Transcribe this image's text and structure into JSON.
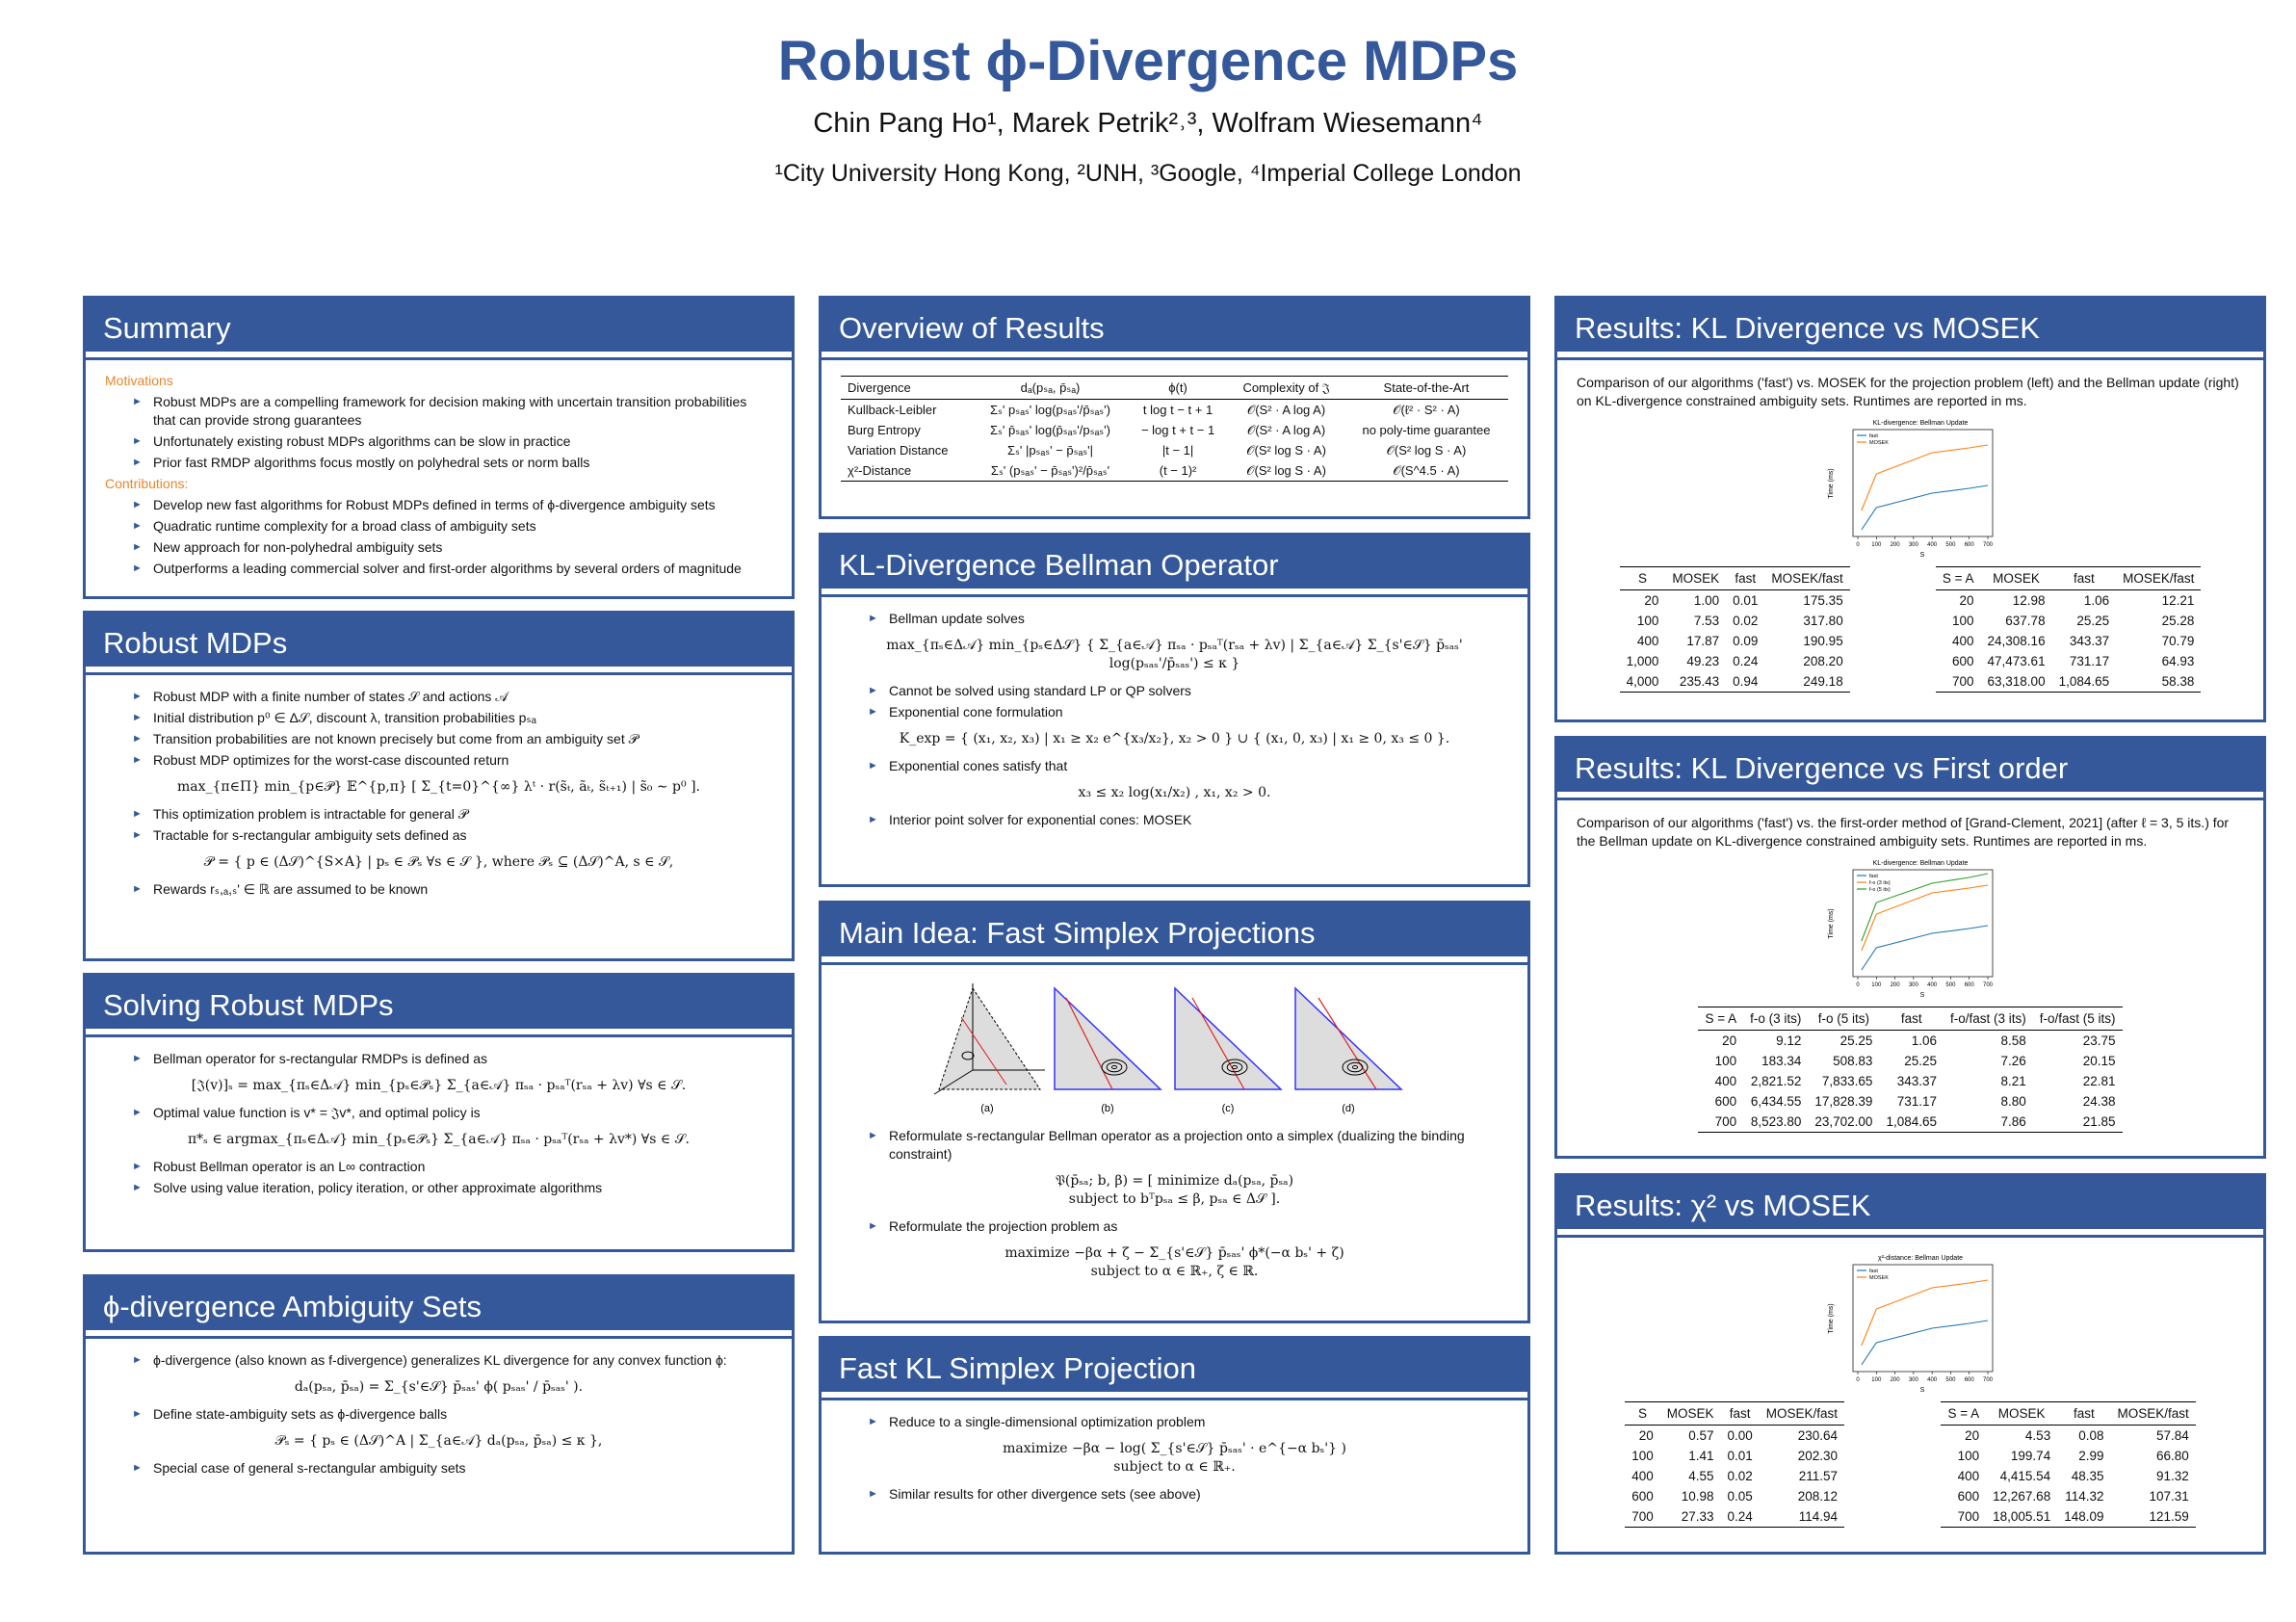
{
  "header": {
    "title": "Robust ϕ-Divergence MDPs",
    "authors": "Chin Pang Ho¹, Marek Petrik²˒³, Wolfram Wiesemann⁴",
    "affiliations": "¹City University Hong Kong, ²UNH, ³Google, ⁴Imperial College London"
  },
  "sections": [
    {
      "title": "Summary",
      "blocks": [
        {
          "label": "Motivations"
        },
        {
          "bullet": "Robust MDPs are a compelling framework for decision making with uncertain transition probabilities that can provide strong guarantees"
        },
        {
          "bullet": "Unfortunately existing robust MDPs algorithms can be slow in practice"
        },
        {
          "bullet": "Prior fast RMDP algorithms focus mostly on polyhedral sets or norm balls"
        },
        {
          "label": "Contributions:"
        },
        {
          "bullet": "Develop new fast algorithms for Robust MDPs defined in terms of ϕ-divergence ambiguity sets"
        },
        {
          "bullet": "Quadratic runtime complexity for a broad class of ambiguity sets"
        },
        {
          "bullet": "New approach for non-polyhedral ambiguity sets"
        },
        {
          "bullet": "Outperforms a leading commercial solver and first-order algorithms by several orders of magnitude"
        }
      ]
    },
    {
      "title": "Robust MDPs",
      "blocks": [
        {
          "bullet": "Robust MDP with a finite number of states 𝒮 and actions 𝒜"
        },
        {
          "bullet": "Initial distribution p⁰ ∈ Δ𝒮, discount λ, transition probabilities pₛₐ"
        },
        {
          "bullet": "Transition probabilities are not known precisely but come from an ambiguity set 𝒫"
        },
        {
          "bullet": "Robust MDP optimizes for the worst-case discounted return"
        },
        {
          "eq": "max_{π∈Π} min_{p∈𝒫} 𝔼^{p,π} [ Σ_{t=0}^{∞} λᵗ · r(s̃ₜ, ãₜ, s̃ₜ₊₁) | s̃₀ ∼ p⁰ ]."
        },
        {
          "bullet": "This optimization problem is intractable for general 𝒫"
        },
        {
          "bullet": "Tractable for s-rectangular ambiguity sets defined as"
        },
        {
          "eq": "𝒫 = { p ∈ (Δ𝒮)^{S×A} | pₛ ∈ 𝒫ₛ ∀s ∈ 𝒮 },    where  𝒫ₛ ⊆ (Δ𝒮)^A, s ∈ 𝒮,"
        },
        {
          "bullet": "Rewards rₛ,ₐ,ₛ' ∈ ℝ are assumed to be known"
        }
      ]
    },
    {
      "title": "Solving Robust MDPs",
      "blocks": [
        {
          "bullet": "Bellman operator for s-rectangular RMDPs is defined as"
        },
        {
          "eq": "[𝔍(v)]ₛ = max_{πₛ∈Δ𝒜} min_{pₛ∈𝒫ₛ} Σ_{a∈𝒜} πₛₐ · pₛₐᵀ(rₛₐ + λv)     ∀s ∈ 𝒮."
        },
        {
          "bullet": "Optimal value function is v* = 𝔍v*, and optimal policy is"
        },
        {
          "eq": "π*ₛ ∈ argmax_{πₛ∈Δ𝒜} min_{pₛ∈𝒫ₛ} Σ_{a∈𝒜} πₛₐ · pₛₐᵀ(rₛₐ + λv*)     ∀s ∈ 𝒮."
        },
        {
          "bullet": "Robust Bellman operator is an L∞ contraction"
        },
        {
          "bullet": "Solve using value iteration, policy iteration, or other approximate algorithms"
        }
      ]
    },
    {
      "title": "ϕ-divergence Ambiguity Sets",
      "blocks": [
        {
          "bullet": "ϕ-divergence (also known as f-divergence) generalizes KL divergence for any convex function ϕ:"
        },
        {
          "eq": "dₐ(pₛₐ, p̄ₛₐ) = Σ_{s'∈𝒮} p̄ₛₐₛ' ϕ( pₛₐₛ' / p̄ₛₐₛ' )."
        },
        {
          "bullet": "Define state-ambiguity sets as ϕ-divergence balls"
        },
        {
          "eq": "𝒫ₛ = { pₛ ∈ (Δ𝒮)^A | Σ_{a∈𝒜} dₐ(pₛₐ, p̄ₛₐ) ≤ κ },"
        },
        {
          "bullet": "Special case of general s-rectangular ambiguity sets"
        }
      ]
    },
    {
      "title": "Overview of Results",
      "blocks": [
        {
          "table": {
            "header": [
              "Divergence",
              "dₐ(pₛₐ, p̄ₛₐ)",
              "ϕ(t)",
              "Complexity of 𝔍",
              "State-of-the-Art"
            ],
            "rows": [
              [
                "Kullback-Leibler",
                "Σₛ' pₛₐₛ' log(pₛₐₛ'/p̄ₛₐₛ')",
                "t log t − t + 1",
                "𝒪(S² · A log A)",
                "𝒪(ℓ² · S² · A)"
              ],
              [
                "Burg Entropy",
                "Σₛ' p̄ₛₐₛ' log(p̄ₛₐₛ'/pₛₐₛ')",
                "− log t + t − 1",
                "𝒪(S² · A log A)",
                "no poly-time guarantee"
              ],
              [
                "Variation Distance",
                "Σₛ' |pₛₐₛ' − p̄ₛₐₛ'|",
                "|t − 1|",
                "𝒪(S² log S · A)",
                "𝒪(S² log S · A)"
              ],
              [
                "χ²-Distance",
                "Σₛ' (pₛₐₛ' − p̄ₛₐₛ')²/p̄ₛₐₛ'",
                "(t − 1)²",
                "𝒪(S² log S · A)",
                "𝒪(S^4.5 · A)"
              ]
            ]
          }
        }
      ]
    },
    {
      "title": "KL-Divergence Bellman Operator",
      "blocks": [
        {
          "bullet": "Bellman update solves"
        },
        {
          "eq": "max_{πₛ∈Δ𝒜} min_{pₛ∈Δ𝒮} { Σ_{a∈𝒜} πₛₐ · pₛₐᵀ(rₛₐ + λv) | Σ_{a∈𝒜} Σ_{s'∈𝒮} p̄ₛₐₛ' log(pₛₐₛ'/p̄ₛₐₛ') ≤ κ }"
        },
        {
          "bullet": "Cannot be solved using standard LP or QP solvers"
        },
        {
          "bullet": "Exponential cone formulation"
        },
        {
          "eq": "K_exp = { (x₁, x₂, x₃) | x₁ ≥ x₂ e^{x₃/x₂}, x₂ > 0 } ∪ { (x₁, 0, x₃) | x₁ ≥ 0, x₃ ≤ 0 }."
        },
        {
          "bullet": "Exponential cones satisfy that"
        },
        {
          "eq": "x₃ ≤ x₂ log(x₁/x₂) , x₁, x₂ > 0."
        },
        {
          "bullet": "Interior point solver for exponential cones: MOSEK"
        }
      ]
    },
    {
      "title": "Main Idea: Fast Simplex Projections",
      "blocks": [
        {
          "simplex_labels": [
            "(a)",
            "(b)",
            "(c)",
            "(d)"
          ]
        },
        {
          "bullet": "Reformulate s-rectangular Bellman operator as a projection onto a simplex (dualizing the binding constraint)"
        },
        {
          "eq": [
            "𝔓(p̄ₛₐ; b, β) = [ minimize  dₐ(pₛₐ, p̄ₛₐ)",
            "subject to  bᵀpₛₐ ≤ β,  pₛₐ ∈ Δ𝒮 ]."
          ]
        },
        {
          "bullet": "Reformulate the projection problem as"
        },
        {
          "eq": [
            "maximize   −βα + ζ − Σ_{s'∈𝒮} p̄ₛₐₛ' ϕ*(−α bₛ' + ζ)",
            "subject to   α ∈ ℝ₊,  ζ ∈ ℝ."
          ]
        }
      ]
    },
    {
      "title": "Fast KL Simplex Projection",
      "blocks": [
        {
          "bullet": "Reduce to a single-dimensional optimization problem"
        },
        {
          "eq": [
            "maximize   −βα − log( Σ_{s'∈𝒮} p̄ₛₐₛ' · e^{−α bₛ'} )",
            "subject to   α ∈ ℝ₊."
          ]
        },
        {
          "bullet": "Similar results for other divergence sets (see above)"
        }
      ]
    },
    {
      "title": "Results: KL Divergence vs MOSEK",
      "blocks": [
        {
          "para": "Comparison of our algorithms ('fast') vs. MOSEK for the projection problem (left) and the Bellman update (right) on KL-divergence constrained ambiguity sets. Runtimes are reported in ms."
        },
        {
          "plot": {
            "title": "KL-divergence: Bellman Update",
            "legend": [
              "fast",
              "MOSEK"
            ],
            "ylabel": "Time (ms)",
            "xlabel": "S",
            "xticks": [
              0,
              100,
              200,
              300,
              400,
              500,
              600,
              700
            ]
          }
        },
        {
          "tables": [
            {
              "header": [
                "S",
                "MOSEK",
                "fast",
                "MOSEK/fast"
              ],
              "rows": [
                [
                  "20",
                  "1.00",
                  "0.01",
                  "175.35"
                ],
                [
                  "100",
                  "7.53",
                  "0.02",
                  "317.80"
                ],
                [
                  "400",
                  "17.87",
                  "0.09",
                  "190.95"
                ],
                [
                  "1,000",
                  "49.23",
                  "0.24",
                  "208.20"
                ],
                [
                  "4,000",
                  "235.43",
                  "0.94",
                  "249.18"
                ]
              ]
            },
            {
              "header": [
                "S = A",
                "MOSEK",
                "fast",
                "MOSEK/fast"
              ],
              "rows": [
                [
                  "20",
                  "12.98",
                  "1.06",
                  "12.21"
                ],
                [
                  "100",
                  "637.78",
                  "25.25",
                  "25.28"
                ],
                [
                  "400",
                  "24,308.16",
                  "343.37",
                  "70.79"
                ],
                [
                  "600",
                  "47,473.61",
                  "731.17",
                  "64.93"
                ],
                [
                  "700",
                  "63,318.00",
                  "1,084.65",
                  "58.38"
                ]
              ]
            }
          ]
        }
      ]
    },
    {
      "title": "Results: KL Divergence vs First order",
      "blocks": [
        {
          "para": "Comparison of our algorithms ('fast') vs. the first-order method of [Grand-Clement, 2021] (after ℓ = 3, 5 its.) for the Bellman update on KL-divergence constrained ambiguity sets. Runtimes are reported in ms."
        },
        {
          "plot": {
            "title": "KL-divergence: Bellman Update",
            "legend": [
              "fast",
              "f-o (3 its)",
              "f-o (5 its)"
            ],
            "ylabel": "Time (ms)",
            "xlabel": "S",
            "xticks": [
              0,
              100,
              200,
              300,
              400,
              500,
              600,
              700
            ]
          }
        },
        {
          "table": {
            "header": [
              "S = A",
              "f-o (3 its)",
              "f-o (5 its)",
              "fast",
              "f-o/fast (3 its)",
              "f-o/fast (5 its)"
            ],
            "rows": [
              [
                "20",
                "9.12",
                "25.25",
                "1.06",
                "8.58",
                "23.75"
              ],
              [
                "100",
                "183.34",
                "508.83",
                "25.25",
                "7.26",
                "20.15"
              ],
              [
                "400",
                "2,821.52",
                "7,833.65",
                "343.37",
                "8.21",
                "22.81"
              ],
              [
                "600",
                "6,434.55",
                "17,828.39",
                "731.17",
                "8.80",
                "24.38"
              ],
              [
                "700",
                "8,523.80",
                "23,702.00",
                "1,084.65",
                "7.86",
                "21.85"
              ]
            ]
          }
        }
      ]
    },
    {
      "title": "Results: χ² vs MOSEK",
      "blocks": [
        {
          "plot": {
            "title": "χ²-distance: Bellman Update",
            "legend": [
              "fast",
              "MOSEK"
            ],
            "ylabel": "Time (ms)",
            "xlabel": "S",
            "xticks": [
              0,
              100,
              200,
              300,
              400,
              500,
              600,
              700
            ]
          }
        },
        {
          "tables": [
            {
              "header": [
                "S",
                "MOSEK",
                "fast",
                "MOSEK/fast"
              ],
              "rows": [
                [
                  "20",
                  "0.57",
                  "0.00",
                  "230.64"
                ],
                [
                  "100",
                  "1.41",
                  "0.01",
                  "202.30"
                ],
                [
                  "400",
                  "4.55",
                  "0.02",
                  "211.57"
                ],
                [
                  "600",
                  "10.98",
                  "0.05",
                  "208.12"
                ],
                [
                  "700",
                  "27.33",
                  "0.24",
                  "114.94"
                ]
              ]
            },
            {
              "header": [
                "S = A",
                "MOSEK",
                "fast",
                "MOSEK/fast"
              ],
              "rows": [
                [
                  "20",
                  "4.53",
                  "0.08",
                  "57.84"
                ],
                [
                  "100",
                  "199.74",
                  "2.99",
                  "66.80"
                ],
                [
                  "400",
                  "4,415.54",
                  "48.35",
                  "91.32"
                ],
                [
                  "600",
                  "12,267.68",
                  "114.32",
                  "107.31"
                ],
                [
                  "700",
                  "18,005.51",
                  "148.09",
                  "121.59"
                ]
              ]
            }
          ]
        }
      ]
    }
  ]
}
